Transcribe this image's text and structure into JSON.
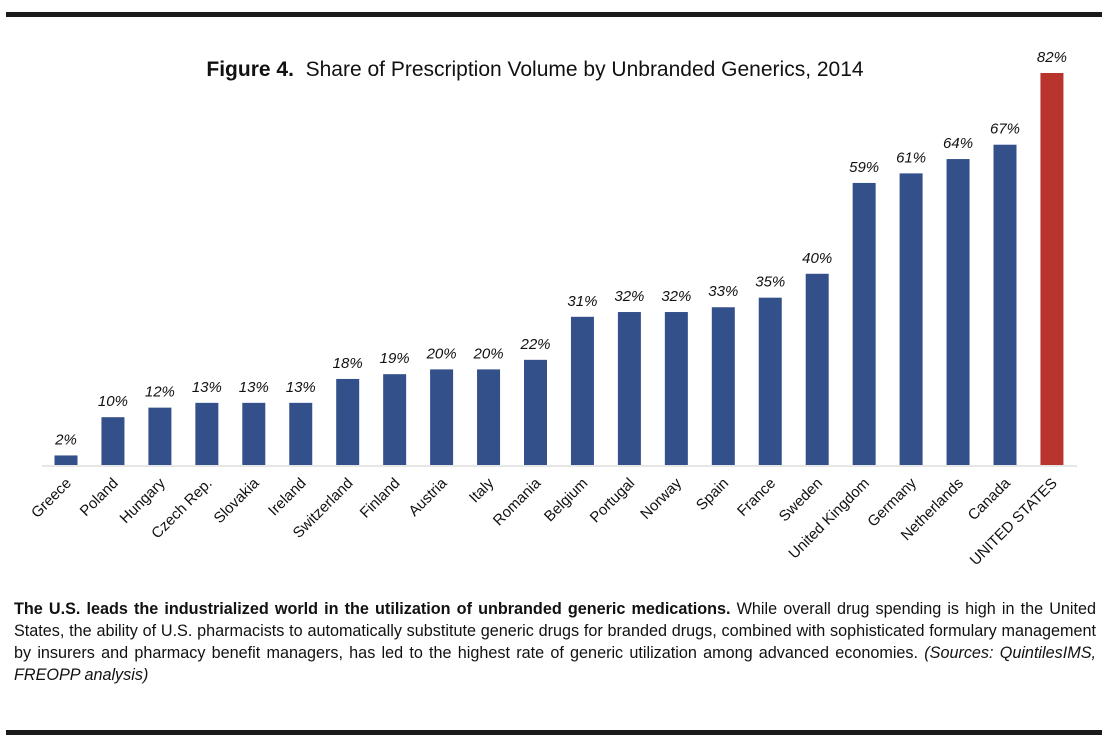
{
  "chart_data": {
    "type": "bar",
    "title_bold": "Figure 4.",
    "title": "Share of Prescription Volume by Unbranded Generics, 2014",
    "xlabel": "",
    "ylabel": "",
    "ylim": [
      0,
      82
    ],
    "grid": false,
    "legend": "none",
    "categories": [
      "Greece",
      "Poland",
      "Hungary",
      "Czech Rep.",
      "Slovakia",
      "Ireland",
      "Switzerland",
      "Finland",
      "Austria",
      "Italy",
      "Romania",
      "Belgium",
      "Portugal",
      "Norway",
      "Spain",
      "France",
      "Sweden",
      "United Kingdom",
      "Germany",
      "Netherlands",
      "Canada",
      "UNITED STATES"
    ],
    "values": [
      2,
      10,
      12,
      13,
      13,
      13,
      18,
      19,
      20,
      20,
      22,
      31,
      32,
      32,
      33,
      35,
      40,
      59,
      61,
      64,
      67,
      82
    ],
    "data_labels": [
      "2%",
      "10%",
      "12%",
      "13%",
      "13%",
      "13%",
      "18%",
      "19%",
      "20%",
      "20%",
      "22%",
      "31%",
      "32%",
      "32%",
      "33%",
      "35%",
      "40%",
      "59%",
      "61%",
      "64%",
      "67%",
      "82%"
    ],
    "highlight_category": "UNITED STATES",
    "colors": {
      "default": "#34508a",
      "highlight": "#b8342d",
      "axis": "#e6e6e6"
    }
  },
  "caption": {
    "bold": "The U.S. leads the industrialized world in the utilization of unbranded generic medications.",
    "body": " While overall drug spending is high in the United States, the ability of U.S. pharmacists to automatically substitute generic drugs for branded drugs, combined with sophisticated formulary management by insurers and pharmacy benefit managers, has led to the highest rate of generic utilization among advanced economies. ",
    "sources": "(Sources: QuintilesIMS, FREOPP analysis)"
  }
}
